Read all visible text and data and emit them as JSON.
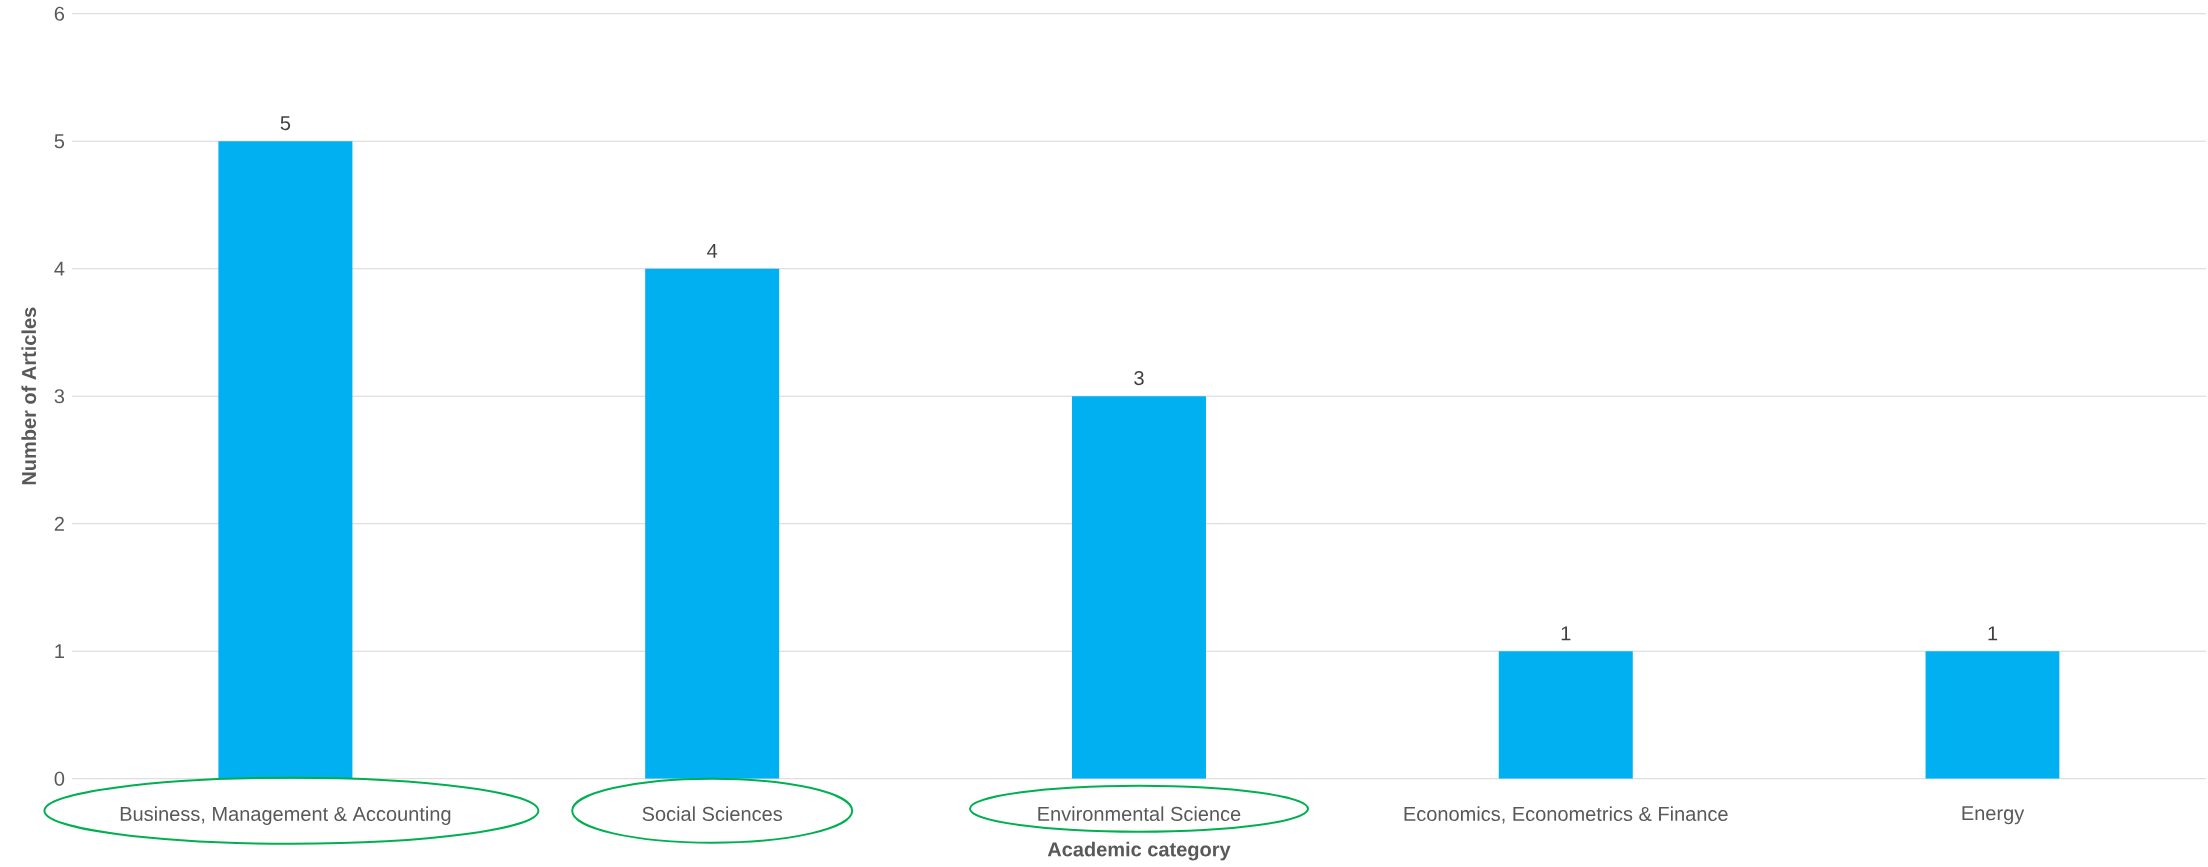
{
  "chart_data": {
    "type": "bar",
    "xlabel": "Academic category",
    "ylabel": "Number of Articles",
    "categories": [
      "Business, Management &  Accounting",
      "Social Sciences",
      "Environmental Science",
      "Economics, Econometrics & Finance",
      "Energy"
    ],
    "values": [
      5,
      4,
      3,
      1,
      1
    ],
    "color": "#00b0f0",
    "ylim": [
      0,
      6
    ],
    "yticks": [
      0,
      1,
      2,
      3,
      4,
      5,
      6
    ],
    "grid": "y",
    "data_labels": true
  }
}
